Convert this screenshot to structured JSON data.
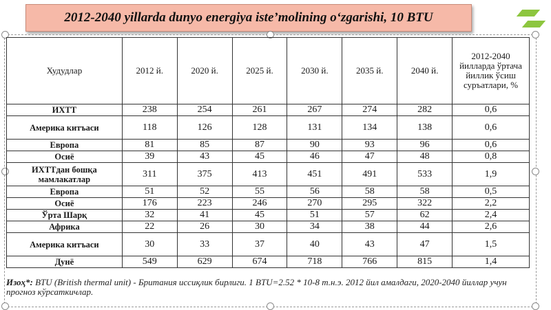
{
  "title": "2012-2040 yillarda dunyo energiya iste’molining o‘zgarishi, 10 BTU",
  "table": {
    "headers": [
      "Худудлар",
      "2012 й.",
      "2020 й.",
      "2025 й.",
      "2030 й.",
      "2035 й.",
      "2040 й.",
      "2012-2040 йилларда ўртача йиллик ўсиш суръатлари, %"
    ],
    "rows": [
      {
        "region": "ИХТТ",
        "values": [
          "238",
          "254",
          "261",
          "267",
          "274",
          "282",
          "0,6"
        ]
      },
      {
        "region": "Америка китъаси",
        "values": [
          "118",
          "126",
          "128",
          "131",
          "134",
          "138",
          "0,6"
        ]
      },
      {
        "region": "Европа",
        "values": [
          "81",
          "85",
          "87",
          "90",
          "93",
          "96",
          "0,6"
        ]
      },
      {
        "region": "Осиё",
        "values": [
          "39",
          "43",
          "45",
          "46",
          "47",
          "48",
          "0,8"
        ]
      },
      {
        "region": "ИХТТдан бошқа мамлакатлар",
        "values": [
          "311",
          "375",
          "413",
          "451",
          "491",
          "533",
          "1,9"
        ]
      },
      {
        "region": "Европа",
        "values": [
          "51",
          "52",
          "55",
          "56",
          "58",
          "58",
          "0,5"
        ]
      },
      {
        "region": "Осиё",
        "values": [
          "176",
          "223",
          "246",
          "270",
          "295",
          "322",
          "2,2"
        ]
      },
      {
        "region": "Ўрта Шарқ",
        "values": [
          "32",
          "41",
          "45",
          "51",
          "57",
          "62",
          "2,4"
        ]
      },
      {
        "region": "Африка",
        "values": [
          "22",
          "26",
          "30",
          "34",
          "38",
          "44",
          "2,6"
        ]
      },
      {
        "region": "Америка китъаси",
        "values": [
          "30",
          "33",
          "37",
          "40",
          "43",
          "47",
          "1,5"
        ]
      },
      {
        "region": "Дунё",
        "values": [
          "549",
          "629",
          "674",
          "718",
          "766",
          "815",
          "1,4"
        ]
      }
    ]
  },
  "note": {
    "label": "Изоҳ*:",
    "text": " BTU (British thermal unit) - Британия иссиқлик бирлиги. 1 BTU=2.52 * 10-8 т.н.э. 2012 йил амалдаги, 2020-2040 йиллар учун прогноз кўрсаткичлар."
  }
}
